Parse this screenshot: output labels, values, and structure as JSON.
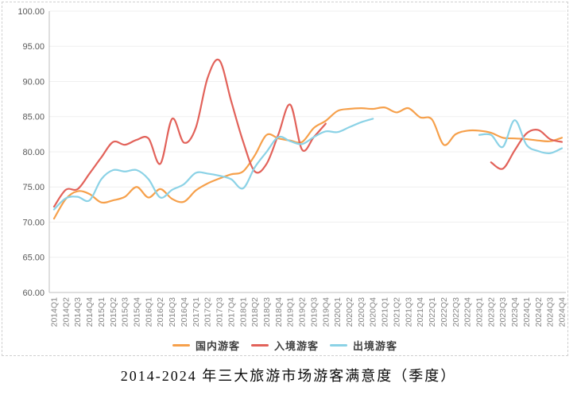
{
  "caption": "2014-2024 年三大旅游市场游客满意度（季度）",
  "chart_data": {
    "type": "line",
    "title": "",
    "xlabel": "",
    "ylabel": "",
    "ylim": [
      60,
      100
    ],
    "y_ticks": [
      "100.00",
      "95.00",
      "90.00",
      "85.00",
      "80.00",
      "75.00",
      "70.00",
      "65.00",
      "60.00"
    ],
    "grid": true,
    "legend_position": "bottom",
    "x_labels": [
      "2014Q1",
      "2014Q2",
      "2014Q3",
      "2014Q4",
      "2015Q1",
      "2015Q2",
      "2015Q3",
      "2015Q4",
      "2016Q1",
      "2016Q2",
      "2016Q3",
      "2016Q4",
      "2017Q1",
      "2017Q2",
      "2017Q3",
      "2017Q4",
      "2018Q1",
      "2018Q2",
      "2018Q3",
      "2018Q4",
      "2019Q1",
      "2019Q2",
      "2019Q3",
      "2019Q4",
      "2020Q1",
      "2020Q2",
      "2020Q3",
      "2020Q4",
      "2021Q1",
      "2021Q2",
      "2021Q3",
      "2021Q4",
      "2022Q1",
      "2022Q2",
      "2022Q3",
      "2022Q4",
      "2023Q1",
      "2023Q2",
      "2023Q3",
      "2023Q4",
      "2024Q1",
      "2024Q2",
      "2024Q3",
      "2024Q4"
    ],
    "series": [
      {
        "name": "国内游客",
        "key": "domestic-tourists",
        "color": "#F6A04B",
        "values": [
          70.5,
          73.3,
          74.4,
          74.0,
          72.8,
          73.1,
          73.6,
          75.0,
          73.5,
          74.7,
          73.3,
          72.9,
          74.5,
          75.5,
          76.2,
          76.8,
          77.2,
          79.5,
          82.4,
          81.9,
          81.6,
          81.4,
          83.4,
          84.4,
          85.8,
          86.1,
          86.2,
          86.1,
          86.3,
          85.6,
          86.2,
          84.9,
          84.6,
          81.0,
          82.5,
          83.0,
          83.0,
          82.7,
          82.0,
          81.9,
          81.8,
          81.6,
          81.5,
          82.0
        ]
      },
      {
        "name": "入境游客",
        "key": "inbound-tourists",
        "color": "#E2625A",
        "values": [
          72.2,
          74.6,
          74.7,
          76.9,
          79.2,
          81.4,
          81.0,
          81.7,
          81.9,
          78.3,
          84.7,
          81.3,
          83.4,
          90.5,
          93.0,
          87.2,
          81.5,
          77.2,
          78.3,
          82.5,
          86.7,
          80.3,
          82.1,
          84.0,
          null,
          null,
          null,
          null,
          null,
          null,
          null,
          null,
          null,
          null,
          null,
          null,
          null,
          78.5,
          77.6,
          80.2,
          82.6,
          83.1,
          81.8,
          81.4
        ]
      },
      {
        "name": "出境游客",
        "key": "outbound-tourists",
        "color": "#8BD2E6",
        "values": [
          71.8,
          73.4,
          73.6,
          73.1,
          76.1,
          77.4,
          77.2,
          77.4,
          76.1,
          73.5,
          74.6,
          75.4,
          77.0,
          76.9,
          76.6,
          76.1,
          74.8,
          77.8,
          80.0,
          82.1,
          81.5,
          81.1,
          82.1,
          82.9,
          82.8,
          83.5,
          84.2,
          84.7,
          null,
          null,
          null,
          null,
          null,
          null,
          null,
          null,
          82.4,
          82.4,
          80.7,
          84.5,
          81.0,
          80.1,
          79.8,
          80.5
        ]
      }
    ],
    "colors": {
      "grid": "#efefef",
      "axis": "#bfbfbf",
      "y_tick_text": "#595959",
      "x_tick_text": "#848484"
    }
  }
}
